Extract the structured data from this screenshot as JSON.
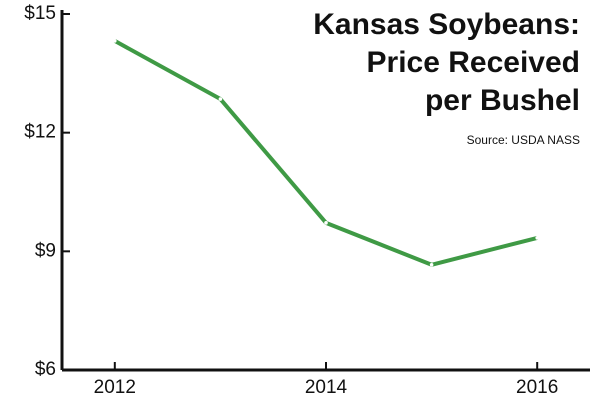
{
  "chart_data": {
    "type": "line",
    "title": [
      "Kansas Soybeans:",
      "Price Received",
      "per Bushel"
    ],
    "source": "Source: USDA NASS",
    "x": [
      2012,
      2013,
      2014,
      2015,
      2016
    ],
    "series": [
      {
        "color": "#3f9a45",
        "values": [
          14.32,
          12.85,
          9.72,
          8.66,
          9.34
        ]
      }
    ],
    "xlim": [
      2011.5,
      2016.5
    ],
    "xticks": [
      2012,
      2014,
      2016
    ],
    "ylim": [
      6,
      15
    ],
    "yticks": [
      {
        "value": 6,
        "label": "$6"
      },
      {
        "value": 9,
        "label": "$9"
      },
      {
        "value": 12,
        "label": "$12"
      },
      {
        "value": 15,
        "label": "$15"
      }
    ]
  }
}
